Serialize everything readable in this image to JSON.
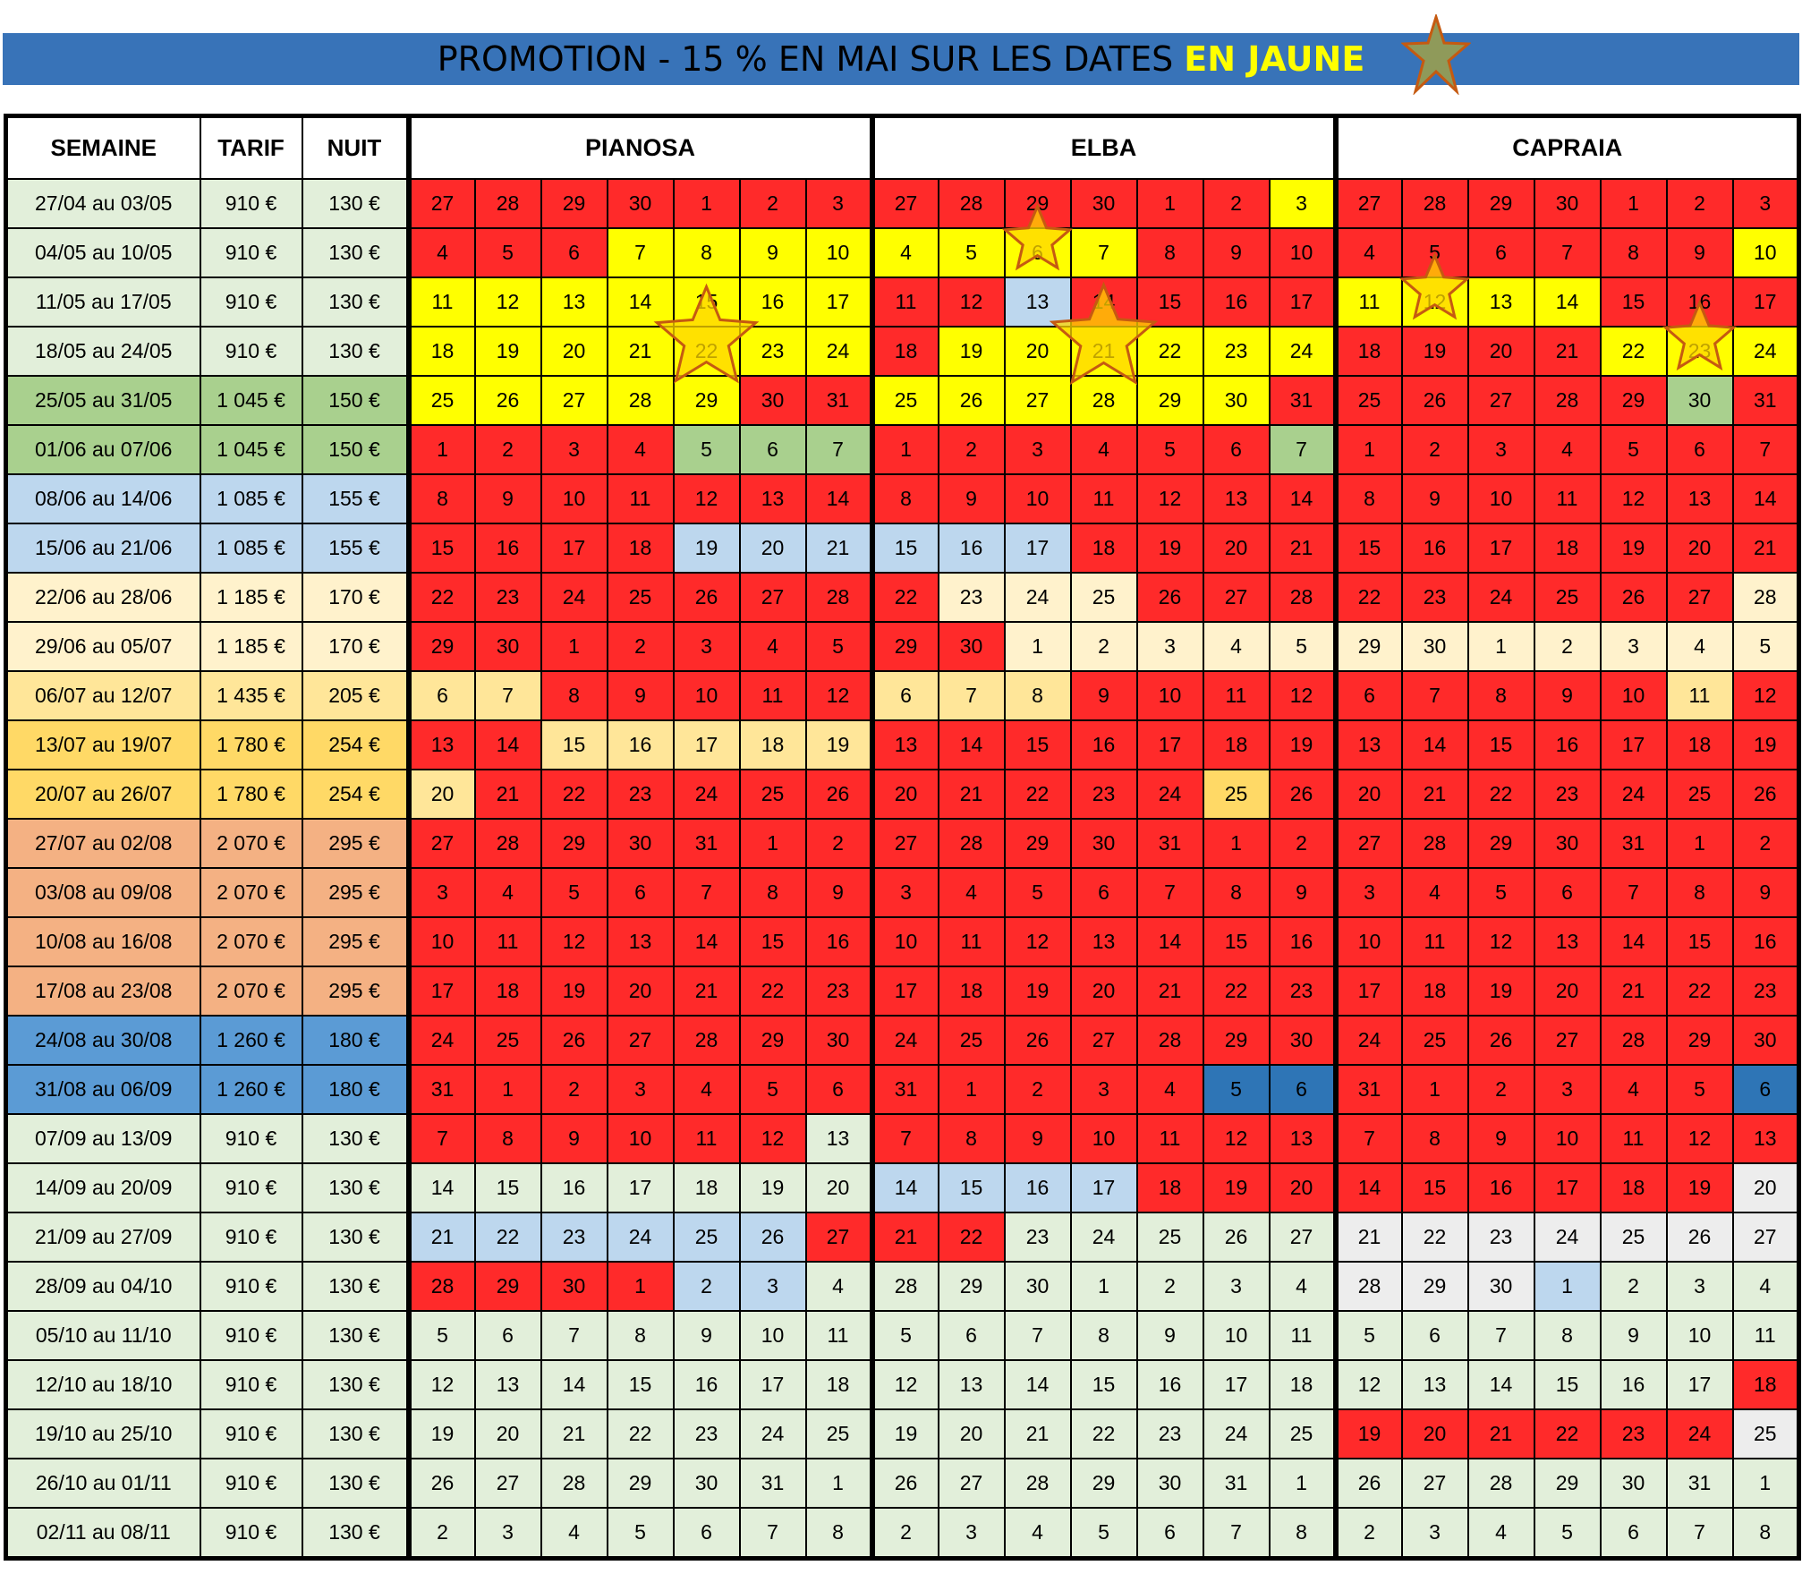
{
  "banner": {
    "text": "PROMOTION - 15 % EN MAI SUR LES DATES ",
    "highlight": "EN JAUNE",
    "star_icon": "star-icon"
  },
  "headers": {
    "semaine": "SEMAINE",
    "tarif": "TARIF",
    "nuit": "NUIT"
  },
  "areas": [
    "PIANOSA",
    "ELBA",
    "CAPRAIA"
  ],
  "colors": {
    "red": "#ff2a2a",
    "yellow": "#ffff00",
    "light_green": "#e2efda",
    "mid_green": "#a9d08e",
    "light_blue": "#bdd7ee",
    "cream": "#fff2cc",
    "light_gold": "#ffe699",
    "gold": "#ffd966",
    "salmon": "#f4b183",
    "blue": "#5b9bd5",
    "dark_blue": "#2e75b6",
    "light_gray": "#ededed",
    "star_fill": "#ffd700",
    "star_stroke": "#c55a11",
    "banner_star_fill": "#8f9a5a"
  },
  "rows": [
    {
      "semaine": "27/04 au 03/05",
      "tarif": "910 €",
      "nuit": "130 €",
      "bg": "light_green",
      "days": [
        "27",
        "28",
        "29",
        "30",
        "1",
        "2",
        "3"
      ],
      "colors": [
        "red",
        "red",
        "red",
        "red",
        "red",
        "red",
        "red",
        "red",
        "red",
        "red",
        "red",
        "red",
        "red",
        "yellow",
        "red",
        "red",
        "red",
        "red",
        "red",
        "red",
        "red"
      ]
    },
    {
      "semaine": "04/05 au 10/05",
      "tarif": "910 €",
      "nuit": "130 €",
      "bg": "light_green",
      "days": [
        "4",
        "5",
        "6",
        "7",
        "8",
        "9",
        "10"
      ],
      "colors": [
        "red",
        "red",
        "red",
        "yellow",
        "yellow",
        "yellow",
        "yellow",
        "yellow",
        "yellow",
        "yellow",
        "yellow",
        "red",
        "red",
        "red",
        "red",
        "red",
        "red",
        "red",
        "red",
        "red",
        "yellow"
      ]
    },
    {
      "semaine": "11/05 au 17/05",
      "tarif": "910 €",
      "nuit": "130 €",
      "bg": "light_green",
      "days": [
        "11",
        "12",
        "13",
        "14",
        "15",
        "16",
        "17"
      ],
      "colors": [
        "yellow",
        "yellow",
        "yellow",
        "yellow",
        "yellow",
        "yellow",
        "yellow",
        "red",
        "red",
        "light_blue",
        "red",
        "red",
        "red",
        "red",
        "yellow",
        "yellow",
        "yellow",
        "yellow",
        "red",
        "red",
        "red"
      ]
    },
    {
      "semaine": "18/05 au 24/05",
      "tarif": "910 €",
      "nuit": "130 €",
      "bg": "light_green",
      "days": [
        "18",
        "19",
        "20",
        "21",
        "22",
        "23",
        "24"
      ],
      "colors": [
        "yellow",
        "yellow",
        "yellow",
        "yellow",
        "yellow",
        "yellow",
        "yellow",
        "red",
        "yellow",
        "yellow",
        "yellow",
        "yellow",
        "yellow",
        "yellow",
        "red",
        "red",
        "red",
        "red",
        "yellow",
        "yellow",
        "yellow"
      ]
    },
    {
      "semaine": "25/05 au 31/05",
      "tarif": "1 045 €",
      "nuit": "150 €",
      "bg": "mid_green",
      "days": [
        "25",
        "26",
        "27",
        "28",
        "29",
        "30",
        "31"
      ],
      "colors": [
        "yellow",
        "yellow",
        "yellow",
        "yellow",
        "yellow",
        "red",
        "red",
        "yellow",
        "yellow",
        "yellow",
        "yellow",
        "yellow",
        "yellow",
        "red",
        "red",
        "red",
        "red",
        "red",
        "red",
        "mid_green",
        "red"
      ]
    },
    {
      "semaine": "01/06 au 07/06",
      "tarif": "1 045 €",
      "nuit": "150 €",
      "bg": "mid_green",
      "days": [
        "1",
        "2",
        "3",
        "4",
        "5",
        "6",
        "7"
      ],
      "colors": [
        "red",
        "red",
        "red",
        "red",
        "mid_green",
        "mid_green",
        "mid_green",
        "red",
        "red",
        "red",
        "red",
        "red",
        "red",
        "mid_green",
        "red",
        "red",
        "red",
        "red",
        "red",
        "red",
        "red"
      ]
    },
    {
      "semaine": "08/06 au 14/06",
      "tarif": "1 085 €",
      "nuit": "155 €",
      "bg": "light_blue",
      "days": [
        "8",
        "9",
        "10",
        "11",
        "12",
        "13",
        "14"
      ],
      "colors": [
        "red",
        "red",
        "red",
        "red",
        "red",
        "red",
        "red",
        "red",
        "red",
        "red",
        "red",
        "red",
        "red",
        "red",
        "red",
        "red",
        "red",
        "red",
        "red",
        "red",
        "red"
      ]
    },
    {
      "semaine": "15/06 au 21/06",
      "tarif": "1 085 €",
      "nuit": "155 €",
      "bg": "light_blue",
      "days": [
        "15",
        "16",
        "17",
        "18",
        "19",
        "20",
        "21"
      ],
      "colors": [
        "red",
        "red",
        "red",
        "red",
        "light_blue",
        "light_blue",
        "light_blue",
        "light_blue",
        "light_blue",
        "light_blue",
        "red",
        "red",
        "red",
        "red",
        "red",
        "red",
        "red",
        "red",
        "red",
        "red",
        "red"
      ]
    },
    {
      "semaine": "22/06 au 28/06",
      "tarif": "1 185 €",
      "nuit": "170 €",
      "bg": "cream",
      "days": [
        "22",
        "23",
        "24",
        "25",
        "26",
        "27",
        "28"
      ],
      "colors": [
        "red",
        "red",
        "red",
        "red",
        "red",
        "red",
        "red",
        "red",
        "cream",
        "cream",
        "cream",
        "red",
        "red",
        "red",
        "red",
        "red",
        "red",
        "red",
        "red",
        "red",
        "cream"
      ]
    },
    {
      "semaine": "29/06 au 05/07",
      "tarif": "1 185 €",
      "nuit": "170 €",
      "bg": "cream",
      "days": [
        "29",
        "30",
        "1",
        "2",
        "3",
        "4",
        "5"
      ],
      "colors": [
        "red",
        "red",
        "red",
        "red",
        "red",
        "red",
        "red",
        "red",
        "red",
        "cream",
        "cream",
        "cream",
        "cream",
        "cream",
        "cream",
        "cream",
        "cream",
        "cream",
        "cream",
        "cream",
        "cream"
      ]
    },
    {
      "semaine": "06/07 au 12/07",
      "tarif": "1 435 €",
      "nuit": "205 €",
      "bg": "light_gold",
      "days": [
        "6",
        "7",
        "8",
        "9",
        "10",
        "11",
        "12"
      ],
      "colors": [
        "light_gold",
        "light_gold",
        "red",
        "red",
        "red",
        "red",
        "red",
        "light_gold",
        "light_gold",
        "light_gold",
        "red",
        "red",
        "red",
        "red",
        "red",
        "red",
        "red",
        "red",
        "red",
        "light_gold",
        "red"
      ]
    },
    {
      "semaine": "13/07 au 19/07",
      "tarif": "1 780 €",
      "nuit": "254 €",
      "bg": "gold",
      "days": [
        "13",
        "14",
        "15",
        "16",
        "17",
        "18",
        "19"
      ],
      "colors": [
        "red",
        "red",
        "light_gold",
        "light_gold",
        "light_gold",
        "light_gold",
        "light_gold",
        "red",
        "red",
        "red",
        "red",
        "red",
        "red",
        "red",
        "red",
        "red",
        "red",
        "red",
        "red",
        "red",
        "red"
      ]
    },
    {
      "semaine": "20/07 au 26/07",
      "tarif": "1 780 €",
      "nuit": "254 €",
      "bg": "gold",
      "days": [
        "20",
        "21",
        "22",
        "23",
        "24",
        "25",
        "26"
      ],
      "colors": [
        "light_gold",
        "red",
        "red",
        "red",
        "red",
        "red",
        "red",
        "red",
        "red",
        "red",
        "red",
        "red",
        "gold",
        "red",
        "red",
        "red",
        "red",
        "red",
        "red",
        "red",
        "red"
      ]
    },
    {
      "semaine": "27/07 au 02/08",
      "tarif": "2 070 €",
      "nuit": "295 €",
      "bg": "salmon",
      "days": [
        "27",
        "28",
        "29",
        "30",
        "31",
        "1",
        "2"
      ],
      "colors": [
        "red",
        "red",
        "red",
        "red",
        "red",
        "red",
        "red",
        "red",
        "red",
        "red",
        "red",
        "red",
        "red",
        "red",
        "red",
        "red",
        "red",
        "red",
        "red",
        "red",
        "red"
      ]
    },
    {
      "semaine": "03/08 au 09/08",
      "tarif": "2 070 €",
      "nuit": "295 €",
      "bg": "salmon",
      "days": [
        "3",
        "4",
        "5",
        "6",
        "7",
        "8",
        "9"
      ],
      "colors": [
        "red",
        "red",
        "red",
        "red",
        "red",
        "red",
        "red",
        "red",
        "red",
        "red",
        "red",
        "red",
        "red",
        "red",
        "red",
        "red",
        "red",
        "red",
        "red",
        "red",
        "red"
      ]
    },
    {
      "semaine": "10/08 au 16/08",
      "tarif": "2 070 €",
      "nuit": "295 €",
      "bg": "salmon",
      "days": [
        "10",
        "11",
        "12",
        "13",
        "14",
        "15",
        "16"
      ],
      "colors": [
        "red",
        "red",
        "red",
        "red",
        "red",
        "red",
        "red",
        "red",
        "red",
        "red",
        "red",
        "red",
        "red",
        "red",
        "red",
        "red",
        "red",
        "red",
        "red",
        "red",
        "red"
      ]
    },
    {
      "semaine": "17/08 au 23/08",
      "tarif": "2 070 €",
      "nuit": "295 €",
      "bg": "salmon",
      "days": [
        "17",
        "18",
        "19",
        "20",
        "21",
        "22",
        "23"
      ],
      "colors": [
        "red",
        "red",
        "red",
        "red",
        "red",
        "red",
        "red",
        "red",
        "red",
        "red",
        "red",
        "red",
        "red",
        "red",
        "red",
        "red",
        "red",
        "red",
        "red",
        "red",
        "red"
      ]
    },
    {
      "semaine": "24/08 au 30/08",
      "tarif": "1 260 €",
      "nuit": "180 €",
      "bg": "blue",
      "days": [
        "24",
        "25",
        "26",
        "27",
        "28",
        "29",
        "30"
      ],
      "colors": [
        "red",
        "red",
        "red",
        "red",
        "red",
        "red",
        "red",
        "red",
        "red",
        "red",
        "red",
        "red",
        "red",
        "red",
        "red",
        "red",
        "red",
        "red",
        "red",
        "red",
        "red"
      ]
    },
    {
      "semaine": "31/08 au 06/09",
      "tarif": "1 260 €",
      "nuit": "180 €",
      "bg": "blue",
      "days": [
        "31",
        "1",
        "2",
        "3",
        "4",
        "5",
        "6"
      ],
      "colors": [
        "red",
        "red",
        "red",
        "red",
        "red",
        "red",
        "red",
        "red",
        "red",
        "red",
        "red",
        "red",
        "dark_blue",
        "dark_blue",
        "red",
        "red",
        "red",
        "red",
        "red",
        "red",
        "dark_blue"
      ]
    },
    {
      "semaine": "07/09 au 13/09",
      "tarif": "910 €",
      "nuit": "130 €",
      "bg": "light_green",
      "days": [
        "7",
        "8",
        "9",
        "10",
        "11",
        "12",
        "13"
      ],
      "colors": [
        "red",
        "red",
        "red",
        "red",
        "red",
        "red",
        "light_green",
        "red",
        "red",
        "red",
        "red",
        "red",
        "red",
        "red",
        "red",
        "red",
        "red",
        "red",
        "red",
        "red",
        "red"
      ]
    },
    {
      "semaine": "14/09 au 20/09",
      "tarif": "910 €",
      "nuit": "130 €",
      "bg": "light_green",
      "days": [
        "14",
        "15",
        "16",
        "17",
        "18",
        "19",
        "20"
      ],
      "colors": [
        "light_green",
        "light_green",
        "light_green",
        "light_green",
        "light_green",
        "light_green",
        "light_green",
        "light_blue",
        "light_blue",
        "light_blue",
        "light_blue",
        "red",
        "red",
        "red",
        "red",
        "red",
        "red",
        "red",
        "red",
        "red",
        "light_gray"
      ]
    },
    {
      "semaine": "21/09 au 27/09",
      "tarif": "910 €",
      "nuit": "130 €",
      "bg": "light_green",
      "days": [
        "21",
        "22",
        "23",
        "24",
        "25",
        "26",
        "27"
      ],
      "colors": [
        "light_blue",
        "light_blue",
        "light_blue",
        "light_blue",
        "light_blue",
        "light_blue",
        "red",
        "red",
        "red",
        "light_green",
        "light_green",
        "light_green",
        "light_green",
        "light_green",
        "light_gray",
        "light_gray",
        "light_gray",
        "light_gray",
        "light_gray",
        "light_gray",
        "light_gray"
      ]
    },
    {
      "semaine": "28/09 au 04/10",
      "tarif": "910 €",
      "nuit": "130 €",
      "bg": "light_green",
      "days": [
        "28",
        "29",
        "30",
        "1",
        "2",
        "3",
        "4"
      ],
      "colors": [
        "red",
        "red",
        "red",
        "red",
        "light_blue",
        "light_blue",
        "light_green",
        "light_green",
        "light_green",
        "light_green",
        "light_green",
        "light_green",
        "light_green",
        "light_green",
        "light_gray",
        "light_gray",
        "light_gray",
        "light_blue",
        "light_green",
        "light_green",
        "light_green"
      ]
    },
    {
      "semaine": "05/10 au 11/10",
      "tarif": "910 €",
      "nuit": "130 €",
      "bg": "light_green",
      "days": [
        "5",
        "6",
        "7",
        "8",
        "9",
        "10",
        "11"
      ],
      "colors": [
        "light_green",
        "light_green",
        "light_green",
        "light_green",
        "light_green",
        "light_green",
        "light_green",
        "light_green",
        "light_green",
        "light_green",
        "light_green",
        "light_green",
        "light_green",
        "light_green",
        "light_green",
        "light_green",
        "light_green",
        "light_green",
        "light_green",
        "light_green",
        "light_green"
      ]
    },
    {
      "semaine": "12/10 au 18/10",
      "tarif": "910 €",
      "nuit": "130 €",
      "bg": "light_green",
      "days": [
        "12",
        "13",
        "14",
        "15",
        "16",
        "17",
        "18"
      ],
      "colors": [
        "light_green",
        "light_green",
        "light_green",
        "light_green",
        "light_green",
        "light_green",
        "light_green",
        "light_green",
        "light_green",
        "light_green",
        "light_green",
        "light_green",
        "light_green",
        "light_green",
        "light_green",
        "light_green",
        "light_green",
        "light_green",
        "light_green",
        "light_green",
        "red"
      ]
    },
    {
      "semaine": "19/10 au 25/10",
      "tarif": "910 €",
      "nuit": "130 €",
      "bg": "light_green",
      "days": [
        "19",
        "20",
        "21",
        "22",
        "23",
        "24",
        "25"
      ],
      "colors": [
        "light_green",
        "light_green",
        "light_green",
        "light_green",
        "light_green",
        "light_green",
        "light_green",
        "light_green",
        "light_green",
        "light_green",
        "light_green",
        "light_green",
        "light_green",
        "light_green",
        "red",
        "red",
        "red",
        "red",
        "red",
        "red",
        "light_gray"
      ]
    },
    {
      "semaine": "26/10 au 01/11",
      "tarif": "910 €",
      "nuit": "130 €",
      "bg": "light_green",
      "days": [
        "26",
        "27",
        "28",
        "29",
        "30",
        "31",
        "1"
      ],
      "colors": [
        "light_green",
        "light_green",
        "light_green",
        "light_green",
        "light_green",
        "light_green",
        "light_green",
        "light_green",
        "light_green",
        "light_green",
        "light_green",
        "light_green",
        "light_green",
        "light_green",
        "light_green",
        "light_green",
        "light_green",
        "light_green",
        "light_green",
        "light_green",
        "light_green"
      ]
    },
    {
      "semaine": "02/11 au 08/11",
      "tarif": "910 €",
      "nuit": "130 €",
      "bg": "light_green",
      "days": [
        "2",
        "3",
        "4",
        "5",
        "6",
        "7",
        "8"
      ],
      "colors": [
        "light_green",
        "light_green",
        "light_green",
        "light_green",
        "light_green",
        "light_green",
        "light_green",
        "light_green",
        "light_green",
        "light_green",
        "light_green",
        "light_green",
        "light_green",
        "light_green",
        "light_green",
        "light_green",
        "light_green",
        "light_green",
        "light_green",
        "light_green",
        "light_green"
      ]
    }
  ],
  "promo_stars": [
    {
      "area": "PIANOSA",
      "week": "18/05 au 24/05",
      "day": "22",
      "icon": "star-icon"
    },
    {
      "area": "ELBA",
      "week": "04/05 au 10/05",
      "day": "6",
      "icon": "star-icon"
    },
    {
      "area": "ELBA",
      "week": "18/05 au 24/05",
      "day": "21",
      "icon": "star-icon"
    },
    {
      "area": "CAPRAIA",
      "week": "11/05 au 17/05",
      "day": "12",
      "icon": "star-icon"
    },
    {
      "area": "CAPRAIA",
      "week": "18/05 au 24/05",
      "day": "23",
      "icon": "star-icon"
    }
  ]
}
